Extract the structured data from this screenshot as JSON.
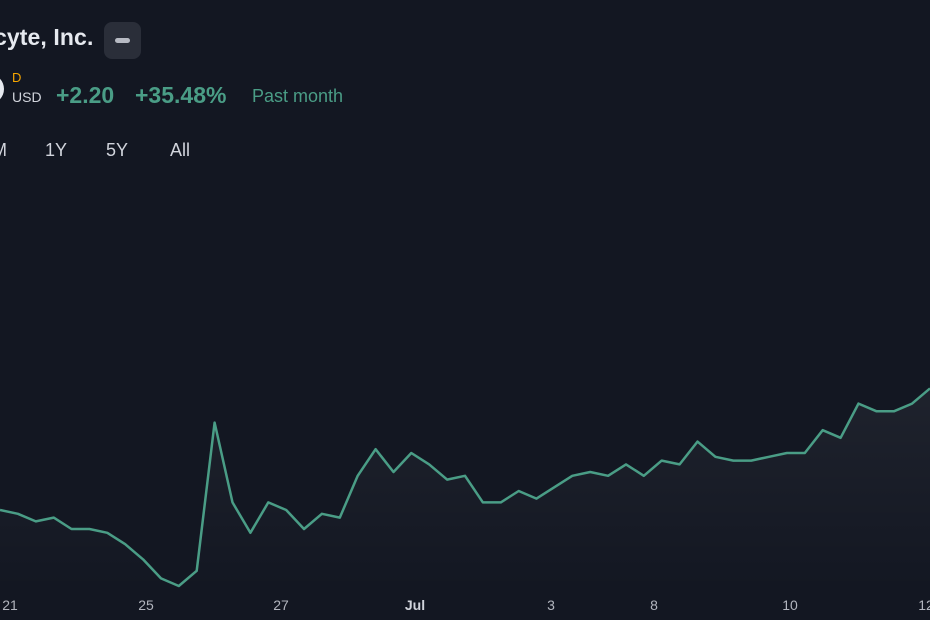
{
  "header": {
    "company_name": "cyte, Inc.",
    "menu_button_icon": "minus-icon",
    "logo_icon": "company-logo-icon",
    "flag": "D",
    "currency": "USD",
    "change_abs": "+2.20",
    "change_pct": "+35.48%",
    "period_label": "Past month",
    "accent_color": "#4a9d86",
    "flag_color": "#f7a600"
  },
  "ranges": [
    {
      "label": "M"
    },
    {
      "label": "1Y"
    },
    {
      "label": "5Y"
    },
    {
      "label": "All"
    }
  ],
  "chart_data": {
    "type": "area",
    "title": "",
    "xlabel": "",
    "ylabel": "",
    "line_color": "#4a9d86",
    "x_ticks": [
      {
        "label": "21"
      },
      {
        "label": "25"
      },
      {
        "label": "27"
      },
      {
        "label": "Jul",
        "bold": true
      },
      {
        "label": "3"
      },
      {
        "label": "8"
      },
      {
        "label": "10"
      },
      {
        "label": "12"
      }
    ],
    "y_relative_to_start_price": [
      0,
      -0.01,
      -0.03,
      -0.02,
      -0.05,
      -0.05,
      -0.06,
      -0.09,
      -0.13,
      -0.18,
      -0.2,
      -0.16,
      0.23,
      0.02,
      -0.06,
      0.02,
      0.0,
      -0.05,
      -0.01,
      -0.02,
      0.09,
      0.16,
      0.1,
      0.15,
      0.12,
      0.08,
      0.09,
      0.02,
      0.02,
      0.05,
      0.03,
      0.06,
      0.09,
      0.1,
      0.09,
      0.12,
      0.09,
      0.13,
      0.12,
      0.18,
      0.14,
      0.13,
      0.13,
      0.14,
      0.15,
      0.15,
      0.21,
      0.19,
      0.28,
      0.26,
      0.26,
      0.28,
      0.32
    ]
  }
}
